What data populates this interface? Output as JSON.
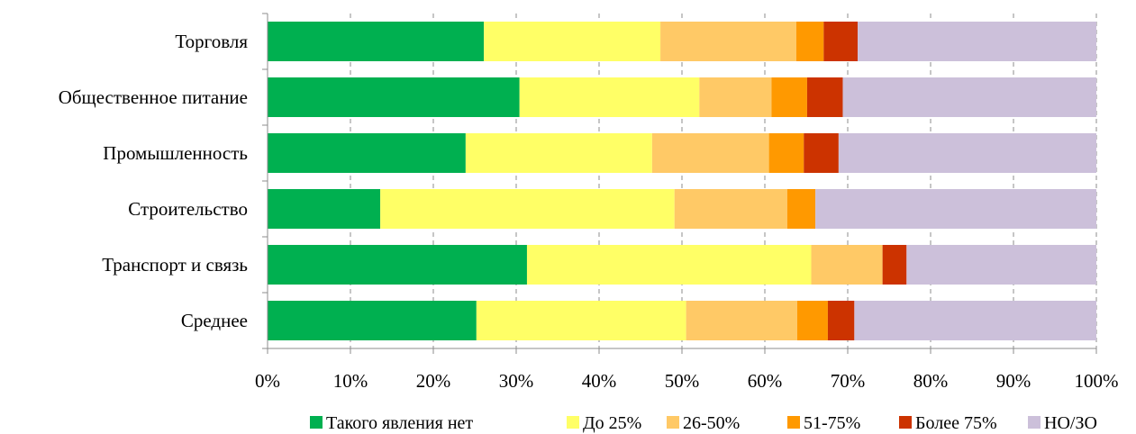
{
  "chart_data": {
    "type": "bar",
    "orientation": "horizontal",
    "stacked": "percent",
    "categories": [
      "Торговля",
      "Общественное питание",
      "Промышленность",
      "Строительство",
      "Транспорт и связь",
      "Среднее"
    ],
    "series": [
      {
        "name": "Такого явления нет",
        "color": "#00b050",
        "values": [
          26.1,
          30.4,
          23.9,
          13.6,
          31.3,
          25.2
        ]
      },
      {
        "name": "До 25%",
        "color": "#ffff66",
        "values": [
          21.3,
          21.7,
          22.5,
          35.5,
          34.3,
          25.3
        ]
      },
      {
        "name": "26-50%",
        "color": "#ffc966",
        "values": [
          16.4,
          8.7,
          14.1,
          13.6,
          8.6,
          13.4
        ]
      },
      {
        "name": "51-75%",
        "color": "#ff9900",
        "values": [
          3.3,
          4.3,
          4.2,
          3.4,
          0,
          3.7
        ]
      },
      {
        "name": "Более 75%",
        "color": "#cc3300",
        "values": [
          4.1,
          4.3,
          4.2,
          0,
          2.9,
          3.2
        ]
      },
      {
        "name": "НО/ЗО",
        "color": "#ccc0da",
        "values": [
          28.8,
          30.6,
          31.1,
          33.9,
          22.9,
          29.2
        ]
      }
    ],
    "xlim": [
      0,
      100
    ],
    "xticks": [
      "0%",
      "10%",
      "20%",
      "30%",
      "40%",
      "50%",
      "60%",
      "70%",
      "80%",
      "90%",
      "100%"
    ],
    "grid": "vertical-dashed",
    "legend_position": "bottom"
  }
}
